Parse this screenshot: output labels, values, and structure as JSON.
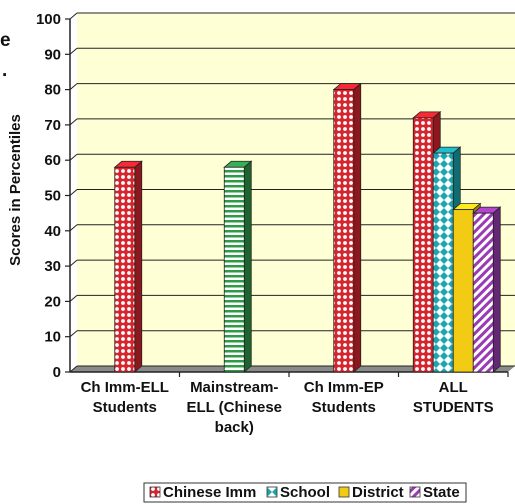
{
  "edge_fragments": [
    "e",
    "."
  ],
  "colors": {
    "chinese_imm": "#d8242d",
    "school": "#1aa6b0",
    "district": "#f2cc14",
    "state": "#9b3bb3",
    "mainstream_stripe": "#2e9a48",
    "wall": "#ffffd6",
    "floor": "#8a8a8a"
  },
  "chart_data": {
    "type": "bar",
    "title": "",
    "xlabel": "",
    "ylabel": "Scores in Percentiles",
    "ylim": [
      0,
      100
    ],
    "yticks": [
      0,
      10,
      20,
      30,
      40,
      50,
      60,
      70,
      80,
      90,
      100
    ],
    "grid": true,
    "legend_position": "bottom",
    "categories": [
      [
        "Ch Imm-ELL",
        "Students"
      ],
      [
        "Mainstream-",
        "ELL (Chinese",
        "back)"
      ],
      [
        "Ch Imm-EP",
        "Students"
      ],
      [
        "ALL",
        "STUDENTS"
      ]
    ],
    "series": [
      {
        "name": "Chinese Imm",
        "values": [
          58,
          null,
          80,
          72
        ]
      },
      {
        "name": "School",
        "values": [
          null,
          null,
          null,
          62
        ]
      },
      {
        "name": "District",
        "values": [
          null,
          null,
          null,
          46
        ]
      },
      {
        "name": "State",
        "values": [
          null,
          null,
          null,
          45
        ]
      }
    ],
    "extra_bars": [
      {
        "category": 1,
        "value": 58,
        "style": "green-stripes"
      }
    ]
  }
}
